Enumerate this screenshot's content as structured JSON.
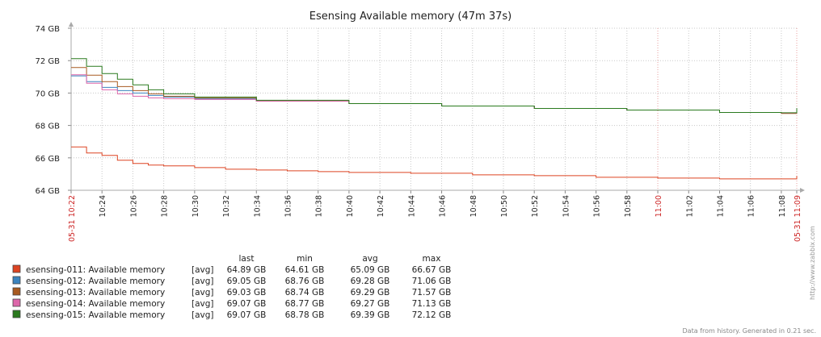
{
  "chart_data": {
    "type": "line",
    "title": "Esensing Available memory (47m 37s)",
    "y_unit": "GB",
    "ylim": [
      64,
      74
    ],
    "y_ticks": [
      "64 GB",
      "66 GB",
      "68 GB",
      "70 GB",
      "72 GB",
      "74 GB"
    ],
    "x_range": [
      "10:22",
      "11:09"
    ],
    "x_ticks": [
      "10:22",
      "10:24",
      "10:26",
      "10:28",
      "10:30",
      "10:32",
      "10:34",
      "10:36",
      "10:38",
      "10:40",
      "10:42",
      "10:44",
      "10:46",
      "10:48",
      "10:50",
      "10:52",
      "10:54",
      "10:56",
      "10:58",
      "11:00",
      "11:02",
      "11:04",
      "11:06",
      "11:08",
      "11:09"
    ],
    "x_ticks_highlight": [
      "10:22",
      "11:00",
      "11:09"
    ],
    "x_date_labels": [
      {
        "at": "10:22",
        "text": "05-31 10:22"
      },
      {
        "at": "11:09",
        "text": "05-31 11:09"
      }
    ],
    "grid": true,
    "legend_headers": {
      "last": "last",
      "min": "min",
      "avg": "avg",
      "max": "max"
    },
    "series": [
      {
        "name": "esensing-011: Available memory",
        "func": "[avg]",
        "color": "#dd4422",
        "last": "64.89 GB",
        "min": "64.61 GB",
        "avg": "65.09 GB",
        "max": "66.67 GB",
        "x": [
          "10:22",
          "10:23",
          "10:24",
          "10:25",
          "10:26",
          "10:27",
          "10:28",
          "10:30",
          "10:32",
          "10:34",
          "10:36",
          "10:38",
          "10:40",
          "10:44",
          "10:48",
          "10:52",
          "10:56",
          "11:00",
          "11:04",
          "11:08",
          "11:09"
        ],
        "values": [
          66.67,
          66.3,
          66.15,
          65.85,
          65.65,
          65.55,
          65.5,
          65.4,
          65.3,
          65.25,
          65.2,
          65.15,
          65.1,
          65.05,
          64.95,
          64.9,
          64.8,
          64.75,
          64.7,
          64.7,
          64.89
        ]
      },
      {
        "name": "esensing-012: Available memory",
        "func": "[avg]",
        "color": "#3b84bf",
        "last": "69.05 GB",
        "min": "68.76 GB",
        "avg": "69.28 GB",
        "max": "71.06 GB",
        "x": [
          "10:22",
          "10:23",
          "10:24",
          "10:25",
          "10:26",
          "10:27",
          "10:28",
          "10:30",
          "10:34",
          "10:40",
          "10:46",
          "10:52",
          "10:58",
          "11:04",
          "11:08",
          "11:09"
        ],
        "values": [
          71.06,
          70.7,
          70.35,
          70.15,
          70.0,
          69.85,
          69.75,
          69.65,
          69.5,
          69.35,
          69.2,
          69.05,
          68.95,
          68.8,
          68.76,
          69.05
        ]
      },
      {
        "name": "esensing-013: Available memory",
        "func": "[avg]",
        "color": "#a85a20",
        "last": "69.03 GB",
        "min": "68.74 GB",
        "avg": "69.29 GB",
        "max": "71.57 GB",
        "x": [
          "10:22",
          "10:23",
          "10:24",
          "10:25",
          "10:26",
          "10:27",
          "10:28",
          "10:30",
          "10:34",
          "10:40",
          "10:46",
          "10:52",
          "10:58",
          "11:04",
          "11:08",
          "11:09"
        ],
        "values": [
          71.57,
          71.1,
          70.7,
          70.4,
          70.15,
          69.95,
          69.8,
          69.7,
          69.5,
          69.35,
          69.2,
          69.05,
          68.95,
          68.8,
          68.74,
          69.03
        ]
      },
      {
        "name": "esensing-014: Available memory",
        "func": "[avg]",
        "color": "#dd66aa",
        "last": "69.07 GB",
        "min": "68.77 GB",
        "avg": "69.27 GB",
        "max": "71.13 GB",
        "x": [
          "10:22",
          "10:23",
          "10:24",
          "10:25",
          "10:26",
          "10:27",
          "10:28",
          "10:30",
          "10:34",
          "10:40",
          "10:46",
          "10:52",
          "10:58",
          "11:04",
          "11:08",
          "11:09"
        ],
        "values": [
          71.13,
          70.6,
          70.2,
          69.95,
          69.8,
          69.7,
          69.65,
          69.6,
          69.5,
          69.35,
          69.2,
          69.05,
          68.95,
          68.8,
          68.77,
          69.07
        ]
      },
      {
        "name": "esensing-015: Available memory",
        "func": "[avg]",
        "color": "#2a7a1e",
        "last": "69.07 GB",
        "min": "68.78 GB",
        "avg": "69.39 GB",
        "max": "72.12 GB",
        "x": [
          "10:22",
          "10:23",
          "10:24",
          "10:25",
          "10:26",
          "10:27",
          "10:28",
          "10:30",
          "10:34",
          "10:40",
          "10:46",
          "10:52",
          "10:58",
          "11:04",
          "11:08",
          "11:09"
        ],
        "values": [
          72.12,
          71.65,
          71.2,
          70.85,
          70.5,
          70.2,
          69.95,
          69.75,
          69.55,
          69.35,
          69.2,
          69.05,
          68.95,
          68.8,
          68.78,
          69.07
        ]
      }
    ]
  },
  "side_caption": "http://www.zabbix.com",
  "footer": "Data from history. Generated in 0.21 sec."
}
